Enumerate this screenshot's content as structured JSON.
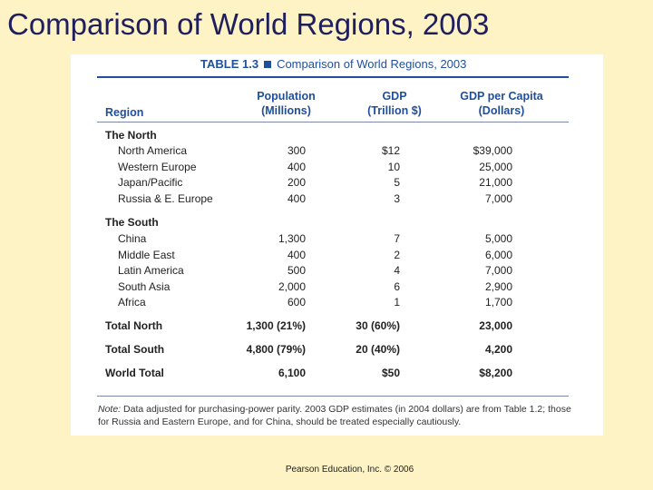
{
  "slide": {
    "title": "Comparison of World Regions, 2003"
  },
  "table": {
    "number": "TABLE 1.3",
    "caption": "Comparison of World Regions, 2003",
    "headers": {
      "region": "Region",
      "population": [
        "Population",
        "(Millions)"
      ],
      "gdp": [
        "GDP",
        "(Trillion $)"
      ],
      "gdp_per_capita": [
        "GDP per Capita",
        "(Dollars)"
      ]
    },
    "rows": [
      {
        "type": "group",
        "region": "The North",
        "population": "",
        "gdp": "",
        "per_capita": ""
      },
      {
        "type": "sub",
        "region": "North America",
        "population": "300",
        "gdp": "$12",
        "per_capita": "$39,000"
      },
      {
        "type": "sub",
        "region": "Western Europe",
        "population": "400",
        "gdp": "10",
        "per_capita": "25,000"
      },
      {
        "type": "sub",
        "region": "Japan/Pacific",
        "population": "200",
        "gdp": "5",
        "per_capita": "21,000"
      },
      {
        "type": "sub",
        "region": "Russia & E. Europe",
        "population": "400",
        "gdp": "3",
        "per_capita": "7,000"
      },
      {
        "type": "group",
        "region": "The South",
        "population": "",
        "gdp": "",
        "per_capita": ""
      },
      {
        "type": "sub",
        "region": "China",
        "population": "1,300",
        "gdp": "7",
        "per_capita": "5,000"
      },
      {
        "type": "sub",
        "region": "Middle East",
        "population": "400",
        "gdp": "2",
        "per_capita": "6,000"
      },
      {
        "type": "sub",
        "region": "Latin America",
        "population": "500",
        "gdp": "4",
        "per_capita": "7,000"
      },
      {
        "type": "sub",
        "region": "South Asia",
        "population": "2,000",
        "gdp": "6",
        "per_capita": "2,900"
      },
      {
        "type": "sub",
        "region": "Africa",
        "population": "600",
        "gdp": "1",
        "per_capita": "1,700"
      },
      {
        "type": "total",
        "region": "Total North",
        "population": "1,300 (21%)",
        "gdp": "30 (60%)",
        "per_capita": "23,000"
      },
      {
        "type": "total",
        "region": "Total South",
        "population": "4,800 (79%)",
        "gdp": "20 (40%)",
        "per_capita": "4,200"
      },
      {
        "type": "total",
        "region": "World Total",
        "population": "6,100",
        "gdp": "$50",
        "per_capita": "$8,200"
      }
    ],
    "note": {
      "label": "Note:",
      "text": "Data adjusted for purchasing-power parity. 2003 GDP estimates (in 2004 dollars) are from Table 1.2; those for Russia and Eastern Europe, and for China, should be treated especially cautiously."
    }
  },
  "footer": {
    "text": "Pearson Education, Inc. © 2006"
  },
  "colors": {
    "background": "#fdf3c4",
    "title": "#1f1f5e",
    "table_accent": "#1f4f9c"
  }
}
